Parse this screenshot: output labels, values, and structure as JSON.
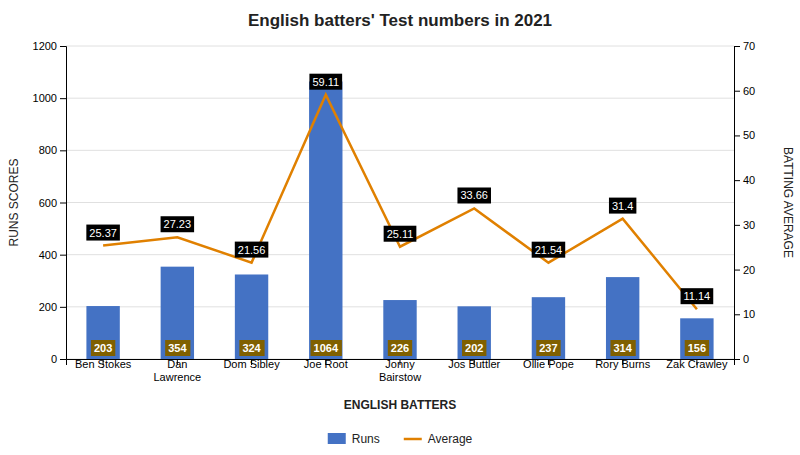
{
  "chart_data": {
    "type": "bar",
    "title": "English batters' Test numbers in 2021",
    "xlabel": "ENGLISH BATTERS",
    "ylabel": "RUNS SCORES",
    "y2label": "BATTING AVERAGE",
    "categories": [
      "Ben Stokes",
      "Dan\nLawrence",
      "Dom Sibley",
      "Joe Root",
      "Jonny\nBairstow",
      "Jos Buttler",
      "Ollie Pope",
      "Rory Burns",
      "Zak Crawley"
    ],
    "series": [
      {
        "name": "Runs",
        "type": "bar",
        "color": "#4472c4",
        "data_labels": true,
        "values": [
          203,
          354,
          324,
          1064,
          226,
          202,
          237,
          314,
          156
        ]
      },
      {
        "name": "Average",
        "type": "line",
        "axis": "y2",
        "color": "#e08000",
        "data_labels": true,
        "values": [
          25.37,
          27.23,
          21.56,
          59.11,
          25.11,
          33.66,
          21.54,
          31.4,
          11.14
        ]
      }
    ],
    "ylim": [
      0,
      1200
    ],
    "yticks": [
      0,
      200,
      400,
      600,
      800,
      1000,
      1200
    ],
    "y2lim": [
      0,
      70
    ],
    "y2ticks": [
      0,
      10,
      20,
      30,
      40,
      50,
      60,
      70
    ],
    "grid": true,
    "legend": "bottom"
  }
}
